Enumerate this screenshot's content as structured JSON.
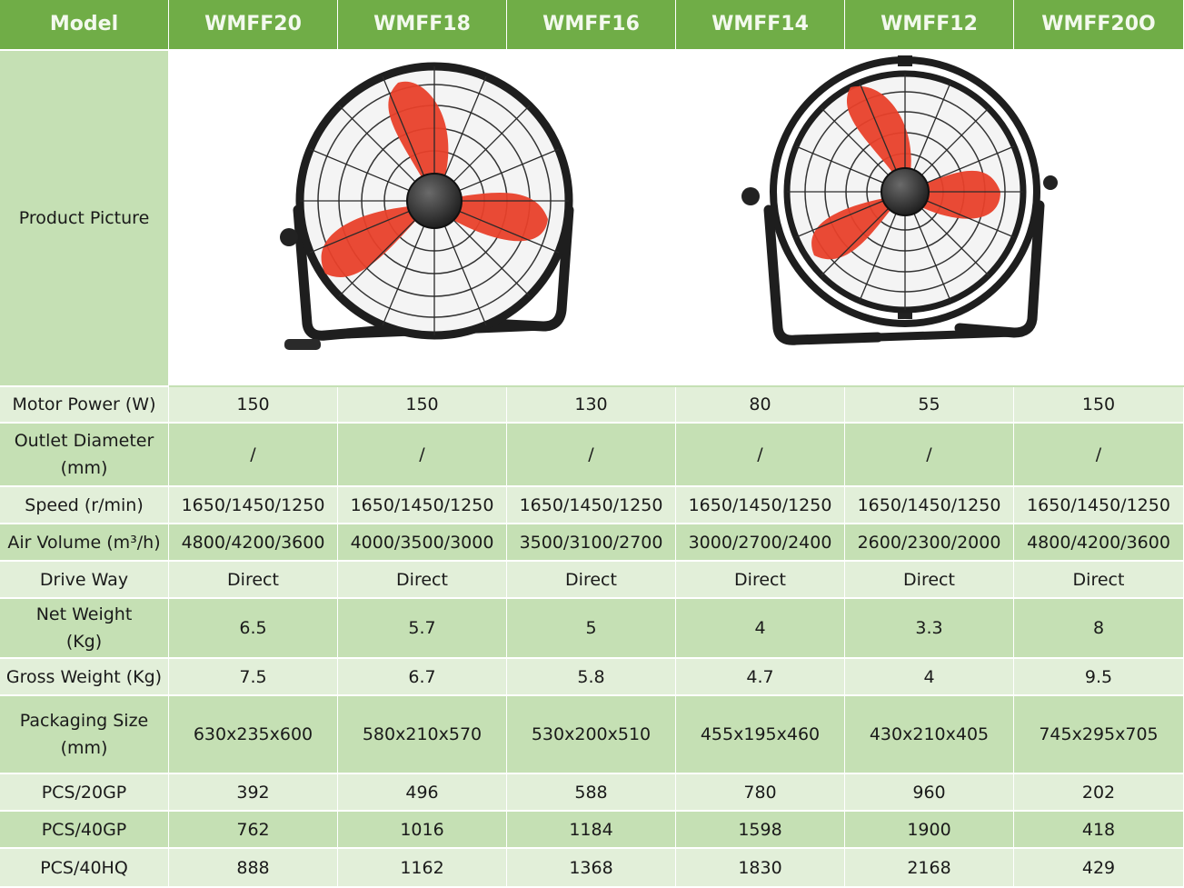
{
  "header": {
    "model_label": "Model",
    "models": [
      "WMFF20",
      "WMFF18",
      "WMFF16",
      "WMFF14",
      "WMFF12",
      "WMFF20O"
    ]
  },
  "picture_row": {
    "label": "Product Picture"
  },
  "rows": [
    {
      "label": "Motor Power (W)",
      "values": [
        "150",
        "150",
        "130",
        "80",
        "55",
        "150"
      ],
      "shade": "light"
    },
    {
      "label": "Outlet Diameter\n(mm)",
      "values": [
        "/",
        "/",
        "/",
        "/",
        "/",
        "/"
      ],
      "shade": "dark"
    },
    {
      "label": "Speed (r/min)",
      "values": [
        "1650/1450/1250",
        "1650/1450/1250",
        "1650/1450/1250",
        "1650/1450/1250",
        "1650/1450/1250",
        "1650/1450/1250"
      ],
      "shade": "light"
    },
    {
      "label": "Air Volume (m³/h)",
      "values": [
        "4800/4200/3600",
        "4000/3500/3000",
        "3500/3100/2700",
        "3000/2700/2400",
        "2600/2300/2000",
        "4800/4200/3600"
      ],
      "shade": "dark"
    },
    {
      "label": "Drive Way",
      "values": [
        "Direct",
        "Direct",
        "Direct",
        "Direct",
        "Direct",
        "Direct"
      ],
      "shade": "light"
    },
    {
      "label": "Net Weight\n(Kg)",
      "values": [
        "6.5",
        "5.7",
        "5",
        "4",
        "3.3",
        "8"
      ],
      "shade": "dark"
    },
    {
      "label": "Gross Weight (Kg)",
      "values": [
        "7.5",
        "6.7",
        "5.8",
        "4.7",
        "4",
        "9.5"
      ],
      "shade": "light"
    },
    {
      "label": "Packaging Size\n(mm)",
      "values": [
        "630x235x600",
        "580x210x570",
        "530x200x510",
        "455x195x460",
        "430x210x405",
        "745x295x705"
      ],
      "shade": "dark"
    },
    {
      "label": "PCS/20GP",
      "values": [
        "392",
        "496",
        "588",
        "780",
        "960",
        "202"
      ],
      "shade": "light"
    },
    {
      "label": "PCS/40GP",
      "values": [
        "762",
        "1016",
        "1184",
        "1598",
        "1900",
        "418"
      ],
      "shade": "dark"
    },
    {
      "label": "PCS/40HQ",
      "values": [
        "888",
        "1162",
        "1368",
        "1830",
        "2168",
        "429"
      ],
      "shade": "light"
    }
  ],
  "colors": {
    "header_bg": "#70ad47",
    "dark_row": "#c5e0b4",
    "light_row": "#e2efd9",
    "fan_blade": "#e8402a",
    "fan_frame": "#1e1e1e"
  },
  "icons": [
    "floor-fan-image",
    "floor-fan-with-ring-image"
  ]
}
